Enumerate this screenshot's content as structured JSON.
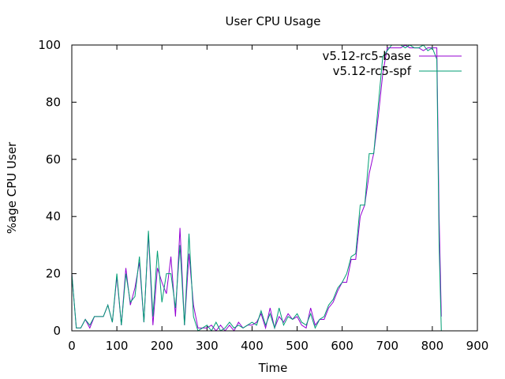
{
  "chart_data": {
    "type": "line",
    "title": "User CPU Usage",
    "xlabel": "Time",
    "ylabel": "%age CPU User",
    "xlim": [
      0,
      900
    ],
    "ylim": [
      0,
      100
    ],
    "xticks": [
      0,
      100,
      200,
      300,
      400,
      500,
      600,
      700,
      800,
      900
    ],
    "yticks": [
      0,
      20,
      40,
      60,
      80,
      100
    ],
    "grid": false,
    "legend_position": "top-right",
    "series": [
      {
        "name": "v5.12-rc5-base",
        "color": "#9400d3",
        "points": [
          [
            0,
            20
          ],
          [
            10,
            1
          ],
          [
            20,
            1
          ],
          [
            30,
            4
          ],
          [
            40,
            1
          ],
          [
            50,
            5
          ],
          [
            60,
            5
          ],
          [
            70,
            5
          ],
          [
            80,
            9
          ],
          [
            90,
            3
          ],
          [
            100,
            19
          ],
          [
            110,
            2
          ],
          [
            120,
            22
          ],
          [
            130,
            9
          ],
          [
            140,
            15
          ],
          [
            150,
            24
          ],
          [
            160,
            3
          ],
          [
            170,
            34
          ],
          [
            180,
            2
          ],
          [
            190,
            22
          ],
          [
            200,
            17
          ],
          [
            210,
            13
          ],
          [
            220,
            26
          ],
          [
            230,
            5
          ],
          [
            240,
            36
          ],
          [
            250,
            2
          ],
          [
            260,
            27
          ],
          [
            270,
            9
          ],
          [
            280,
            1
          ],
          [
            290,
            1
          ],
          [
            300,
            1
          ],
          [
            310,
            2
          ],
          [
            320,
            0
          ],
          [
            330,
            2
          ],
          [
            340,
            0
          ],
          [
            350,
            2
          ],
          [
            360,
            0
          ],
          [
            370,
            3
          ],
          [
            380,
            1
          ],
          [
            390,
            2
          ],
          [
            400,
            2
          ],
          [
            410,
            3
          ],
          [
            420,
            6
          ],
          [
            430,
            1
          ],
          [
            440,
            8
          ],
          [
            450,
            1
          ],
          [
            460,
            5
          ],
          [
            470,
            3
          ],
          [
            480,
            6
          ],
          [
            490,
            4
          ],
          [
            500,
            5
          ],
          [
            510,
            2
          ],
          [
            520,
            1
          ],
          [
            530,
            8
          ],
          [
            540,
            2
          ],
          [
            550,
            4
          ],
          [
            560,
            4
          ],
          [
            570,
            8
          ],
          [
            580,
            10
          ],
          [
            590,
            14
          ],
          [
            600,
            17
          ],
          [
            610,
            17
          ],
          [
            620,
            25
          ],
          [
            630,
            25
          ],
          [
            640,
            40
          ],
          [
            650,
            44
          ],
          [
            660,
            55
          ],
          [
            670,
            62
          ],
          [
            680,
            75
          ],
          [
            690,
            90
          ],
          [
            700,
            99
          ],
          [
            710,
            99
          ],
          [
            720,
            99
          ],
          [
            730,
            99
          ],
          [
            740,
            100
          ],
          [
            750,
            99
          ],
          [
            760,
            99
          ],
          [
            770,
            99
          ],
          [
            780,
            98
          ],
          [
            790,
            99
          ],
          [
            800,
            99
          ],
          [
            810,
            99
          ],
          [
            815,
            40
          ],
          [
            820,
            5
          ]
        ]
      },
      {
        "name": "v5.12-rc5-spf",
        "color": "#009e73",
        "points": [
          [
            0,
            20
          ],
          [
            10,
            1
          ],
          [
            20,
            1
          ],
          [
            30,
            4
          ],
          [
            40,
            2
          ],
          [
            50,
            5
          ],
          [
            60,
            5
          ],
          [
            70,
            5
          ],
          [
            80,
            9
          ],
          [
            90,
            3
          ],
          [
            100,
            20
          ],
          [
            110,
            2
          ],
          [
            120,
            20
          ],
          [
            130,
            10
          ],
          [
            140,
            12
          ],
          [
            150,
            26
          ],
          [
            160,
            3
          ],
          [
            170,
            35
          ],
          [
            180,
            5
          ],
          [
            190,
            28
          ],
          [
            200,
            10
          ],
          [
            210,
            20
          ],
          [
            220,
            20
          ],
          [
            230,
            8
          ],
          [
            240,
            30
          ],
          [
            250,
            2
          ],
          [
            260,
            34
          ],
          [
            270,
            5
          ],
          [
            280,
            0
          ],
          [
            290,
            1
          ],
          [
            300,
            2
          ],
          [
            310,
            0
          ],
          [
            320,
            3
          ],
          [
            330,
            0
          ],
          [
            340,
            1
          ],
          [
            350,
            3
          ],
          [
            360,
            1
          ],
          [
            370,
            2
          ],
          [
            380,
            1
          ],
          [
            390,
            2
          ],
          [
            400,
            3
          ],
          [
            410,
            2
          ],
          [
            420,
            7
          ],
          [
            430,
            2
          ],
          [
            440,
            6
          ],
          [
            450,
            1
          ],
          [
            460,
            8
          ],
          [
            470,
            2
          ],
          [
            480,
            5
          ],
          [
            490,
            4
          ],
          [
            500,
            6
          ],
          [
            510,
            3
          ],
          [
            520,
            2
          ],
          [
            530,
            6
          ],
          [
            540,
            1
          ],
          [
            550,
            4
          ],
          [
            560,
            5
          ],
          [
            570,
            9
          ],
          [
            580,
            11
          ],
          [
            590,
            15
          ],
          [
            600,
            17
          ],
          [
            610,
            20
          ],
          [
            620,
            26
          ],
          [
            630,
            27
          ],
          [
            640,
            44
          ],
          [
            650,
            44
          ],
          [
            660,
            62
          ],
          [
            670,
            62
          ],
          [
            680,
            79
          ],
          [
            690,
            96
          ],
          [
            700,
            98
          ],
          [
            710,
            100
          ],
          [
            720,
            100
          ],
          [
            730,
            100
          ],
          [
            740,
            99
          ],
          [
            750,
            100
          ],
          [
            760,
            99
          ],
          [
            770,
            99
          ],
          [
            780,
            100
          ],
          [
            790,
            98
          ],
          [
            800,
            99
          ],
          [
            810,
            95
          ],
          [
            815,
            30
          ],
          [
            820,
            0
          ]
        ]
      }
    ]
  }
}
